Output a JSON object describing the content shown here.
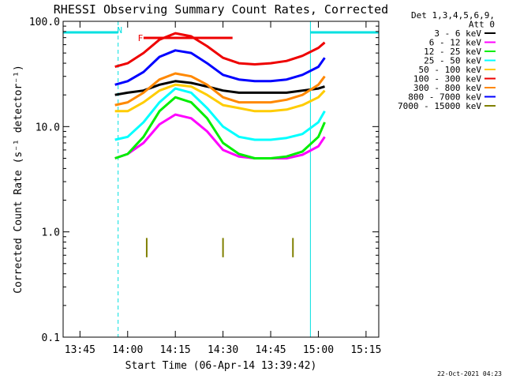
{
  "chart_data": {
    "type": "line",
    "title": "RHESSI Observing Summary Count Rates, Corrected",
    "xlabel": "Start Time (06-Apr-14 13:39:42)",
    "ylabel": "Corrected Count Rate (s⁻¹ detector⁻¹)",
    "y_scale": "log",
    "ylim": [
      0.1,
      100
    ],
    "xlim": [
      "13:39:42",
      "15:19:00"
    ],
    "y_ticks": [
      "0.1",
      "1.0",
      "10.0",
      "100.0"
    ],
    "x_ticks": [
      "13:45",
      "14:00",
      "14:15",
      "14:30",
      "14:45",
      "15:00",
      "15:15"
    ],
    "legend_header": [
      "Det 1,3,4,5,6,9,",
      "Att 0"
    ],
    "legend_position": "right",
    "annotations": [
      {
        "text": "N",
        "color": "#00e0e0",
        "x": "13:57:30"
      },
      {
        "text": "F",
        "color": "#ee0000",
        "x": "14:04:00"
      }
    ],
    "night_intervals": [
      [
        "13:39:42",
        "13:57:00"
      ],
      [
        "14:57:30",
        "15:19:00"
      ]
    ],
    "flare_interval": [
      "14:05:00",
      "14:33:00"
    ],
    "series": [
      {
        "name": "3 - 6 keV",
        "color": "#000000",
        "x": [
          "13:56",
          "14:00",
          "14:05",
          "14:10",
          "14:15",
          "14:20",
          "14:25",
          "14:30",
          "14:35",
          "14:40",
          "14:45",
          "14:50",
          "14:55",
          "15:00",
          "15:02"
        ],
        "values": [
          20,
          21,
          22,
          25,
          27,
          26,
          24,
          22,
          21,
          21,
          21,
          21,
          22,
          23,
          24
        ]
      },
      {
        "name": "6 - 12 keV",
        "color": "#ff00ff",
        "x": [
          "13:56",
          "14:00",
          "14:05",
          "14:10",
          "14:15",
          "14:20",
          "14:25",
          "14:30",
          "14:35",
          "14:40",
          "14:45",
          "14:50",
          "14:55",
          "15:00",
          "15:02"
        ],
        "values": [
          5,
          5.5,
          7,
          10.5,
          13,
          12,
          9,
          6,
          5.2,
          5,
          5,
          5,
          5.4,
          6.5,
          8
        ]
      },
      {
        "name": "12 - 25 keV",
        "color": "#00ee00",
        "x": [
          "13:56",
          "14:00",
          "14:05",
          "14:10",
          "14:15",
          "14:20",
          "14:25",
          "14:30",
          "14:35",
          "14:40",
          "14:45",
          "14:50",
          "14:55",
          "15:00",
          "15:02"
        ],
        "values": [
          5,
          5.5,
          8,
          14,
          19,
          17,
          12,
          7,
          5.5,
          5,
          5,
          5.2,
          5.8,
          8,
          11
        ]
      },
      {
        "name": "25 - 50 keV",
        "color": "#00ffff",
        "x": [
          "13:56",
          "14:00",
          "14:05",
          "14:10",
          "14:15",
          "14:20",
          "14:25",
          "14:30",
          "14:35",
          "14:40",
          "14:45",
          "14:50",
          "14:55",
          "15:00",
          "15:02"
        ],
        "values": [
          7.5,
          8,
          11,
          17,
          23,
          21,
          15,
          10,
          8,
          7.5,
          7.5,
          7.8,
          8.5,
          11,
          14
        ]
      },
      {
        "name": "50 - 100 keV",
        "color": "#ffcc00",
        "x": [
          "13:56",
          "14:00",
          "14:05",
          "14:10",
          "14:15",
          "14:20",
          "14:25",
          "14:30",
          "14:35",
          "14:40",
          "14:45",
          "14:50",
          "14:55",
          "15:00",
          "15:02"
        ],
        "values": [
          14,
          14,
          17,
          22,
          25,
          24,
          20,
          16,
          15,
          14,
          14,
          14.5,
          16,
          19,
          22
        ]
      },
      {
        "name": "100 - 300 keV",
        "color": "#ee0000",
        "x": [
          "13:56",
          "14:00",
          "14:05",
          "14:10",
          "14:15",
          "14:20",
          "14:25",
          "14:30",
          "14:35",
          "14:40",
          "14:45",
          "14:50",
          "14:55",
          "15:00",
          "15:02"
        ],
        "values": [
          37,
          40,
          50,
          67,
          77,
          72,
          58,
          45,
          40,
          39,
          40,
          42,
          47,
          56,
          63
        ]
      },
      {
        "name": "300 - 800 keV",
        "color": "#ff8800",
        "x": [
          "13:56",
          "14:00",
          "14:05",
          "14:10",
          "14:15",
          "14:20",
          "14:25",
          "14:30",
          "14:35",
          "14:40",
          "14:45",
          "14:50",
          "14:55",
          "15:00",
          "15:02"
        ],
        "values": [
          16,
          17,
          21,
          28,
          32,
          30,
          25,
          19,
          17,
          17,
          17,
          18,
          20,
          25,
          30
        ]
      },
      {
        "name": "800 - 7000 keV",
        "color": "#0000ff",
        "x": [
          "13:56",
          "14:00",
          "14:05",
          "14:10",
          "14:15",
          "14:20",
          "14:25",
          "14:30",
          "14:35",
          "14:40",
          "14:45",
          "14:50",
          "14:55",
          "15:00",
          "15:02"
        ],
        "values": [
          25,
          27,
          33,
          46,
          53,
          50,
          40,
          31,
          28,
          27,
          27,
          28,
          31,
          37,
          45
        ]
      },
      {
        "name": "7000 - 15000 keV",
        "color": "#808000",
        "x": [
          "14:06",
          "14:30",
          "14:52"
        ],
        "values": [
          0.7,
          0.7,
          0.7
        ]
      }
    ],
    "timestamp": "22-Oct-2021 04:23"
  }
}
